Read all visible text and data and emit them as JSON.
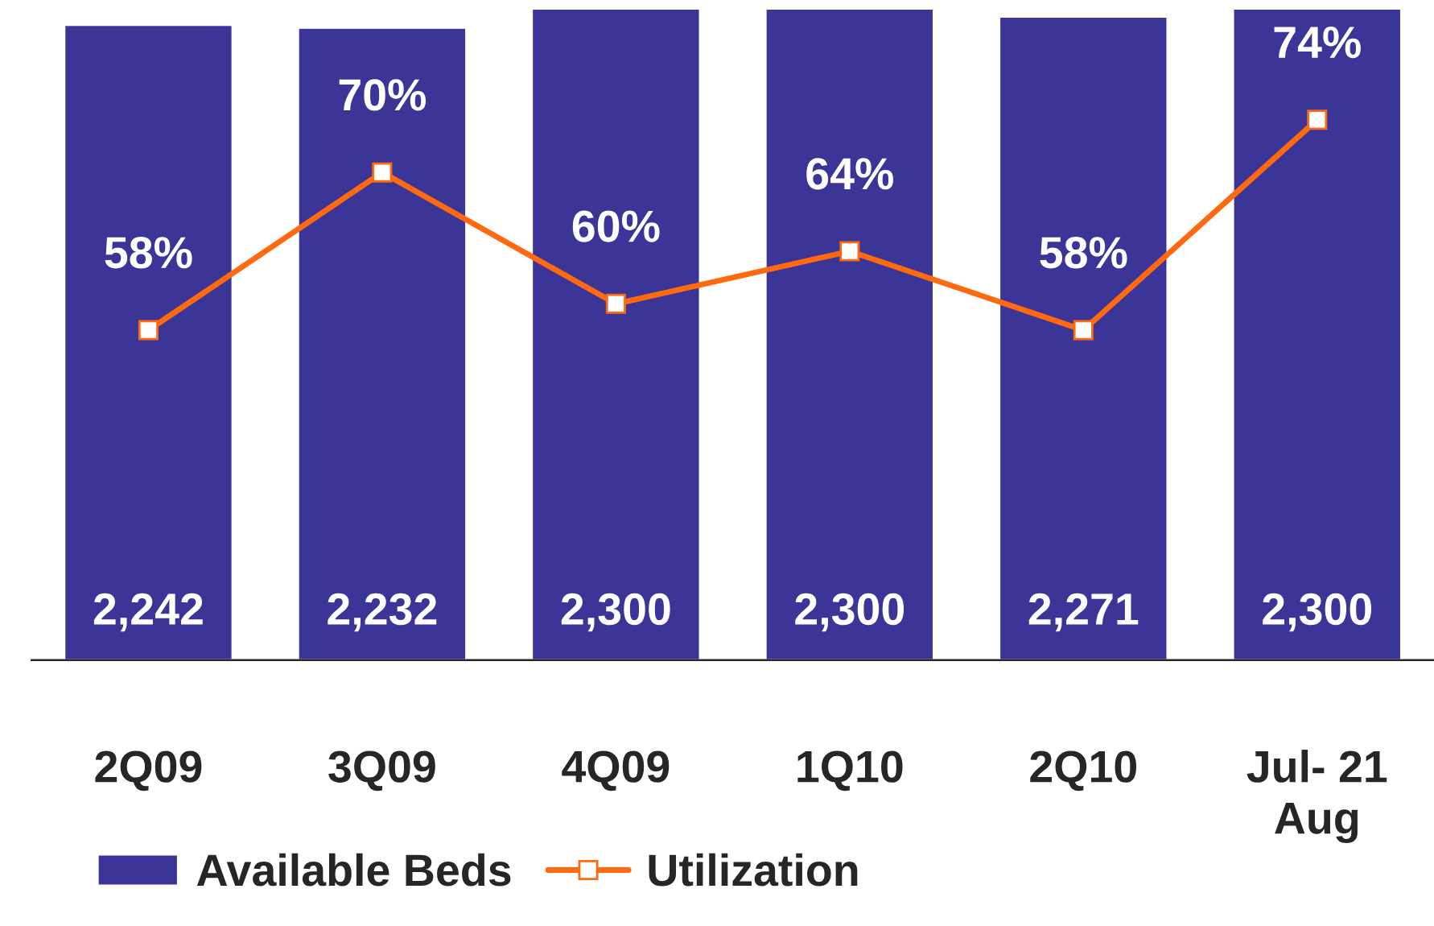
{
  "chart_data": {
    "type": "bar",
    "categories": [
      "2Q09",
      "3Q09",
      "4Q09",
      "1Q10",
      "2Q10",
      "Jul- 21\nAug"
    ],
    "series": [
      {
        "name": "Available Beds",
        "color": "#3a3597",
        "values": [
          2242,
          2232,
          2300,
          2300,
          2271,
          2300
        ],
        "value_labels": [
          "2,242",
          "2,232",
          "2,300",
          "2,300",
          "2,271",
          "2,300"
        ]
      },
      {
        "name": "Utilization",
        "type": "line",
        "axis": "y2",
        "color": "#ff6a10",
        "values": [
          58,
          70,
          60,
          64,
          58,
          74
        ],
        "value_labels": [
          "58%",
          "70%",
          "60%",
          "64%",
          "58%",
          "74%"
        ]
      }
    ],
    "data_labels": true,
    "legend": "bottom left",
    "marker": "square",
    "tick_labels": "x"
  }
}
